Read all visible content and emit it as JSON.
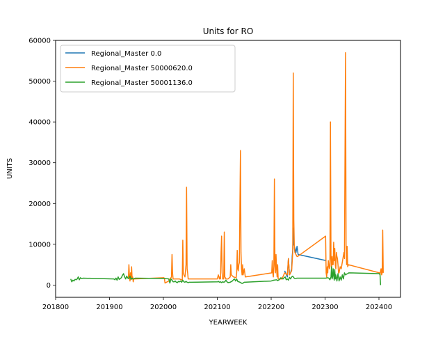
{
  "chart_data": {
    "type": "line",
    "title": "Units for RO",
    "xlabel": "YEARWEEK",
    "ylabel": "UNITS",
    "xlim": [
      201800,
      202440
    ],
    "ylim": [
      -3000,
      60000
    ],
    "xticks": [
      201800,
      201900,
      202000,
      202100,
      202200,
      202300,
      202400
    ],
    "yticks": [
      0,
      10000,
      20000,
      30000,
      40000,
      50000,
      60000
    ],
    "grid": false,
    "legend_position": "upper-left",
    "series": [
      {
        "name": "Regional_Master 0.0",
        "color": "#1f77b4",
        "points": [
          [
            202225,
            3500
          ],
          [
            202230,
            2000
          ],
          [
            202232,
            6500
          ],
          [
            202234,
            2500
          ],
          [
            202236,
            3000
          ],
          [
            202238,
            4000
          ],
          [
            202239,
            7000
          ],
          [
            202240,
            8500
          ],
          [
            202241,
            14000
          ],
          [
            202242,
            10000
          ],
          [
            202244,
            9000
          ],
          [
            202246,
            8000
          ],
          [
            202248,
            9500
          ],
          [
            202250,
            7500
          ],
          [
            202302,
            6000
          ]
        ]
      },
      {
        "name": "Regional_Master 50000620.0",
        "color": "#ff7f0e",
        "points": [
          [
            201935,
            1500
          ],
          [
            201936,
            5000
          ],
          [
            201937,
            2000
          ],
          [
            201938,
            1000
          ],
          [
            201939,
            3000
          ],
          [
            201940,
            1500
          ],
          [
            201941,
            4500
          ],
          [
            201942,
            1500
          ],
          [
            201943,
            2000
          ],
          [
            201944,
            800
          ],
          [
            201945,
            1500
          ],
          [
            202001,
            1800
          ],
          [
            202002,
            1500
          ],
          [
            202003,
            500
          ],
          [
            202010,
            1000
          ],
          [
            202015,
            2000
          ],
          [
            202016,
            7500
          ],
          [
            202017,
            3000
          ],
          [
            202018,
            1500
          ],
          [
            202030,
            1500
          ],
          [
            202035,
            1200
          ],
          [
            202036,
            11000
          ],
          [
            202037,
            3000
          ],
          [
            202038,
            2500
          ],
          [
            202040,
            2000
          ],
          [
            202042,
            5000
          ],
          [
            202043,
            24000
          ],
          [
            202044,
            4000
          ],
          [
            202045,
            3000
          ],
          [
            202046,
            1500
          ],
          [
            202100,
            1500
          ],
          [
            202101,
            2000
          ],
          [
            202102,
            2500
          ],
          [
            202104,
            1500
          ],
          [
            202105,
            2000
          ],
          [
            202106,
            1500
          ],
          [
            202107,
            8000
          ],
          [
            202108,
            12000
          ],
          [
            202109,
            3000
          ],
          [
            202110,
            1500
          ],
          [
            202112,
            1500
          ],
          [
            202113,
            13000
          ],
          [
            202114,
            2000
          ],
          [
            202115,
            1800
          ],
          [
            202116,
            1500
          ],
          [
            202120,
            1500
          ],
          [
            202124,
            2000
          ],
          [
            202125,
            5000
          ],
          [
            202126,
            2500
          ],
          [
            202130,
            2000
          ],
          [
            202135,
            1800
          ],
          [
            202136,
            3000
          ],
          [
            202137,
            8500
          ],
          [
            202138,
            4000
          ],
          [
            202139,
            3500
          ],
          [
            202140,
            5000
          ],
          [
            202141,
            5500
          ],
          [
            202142,
            20000
          ],
          [
            202143,
            33000
          ],
          [
            202144,
            8000
          ],
          [
            202145,
            4000
          ],
          [
            202146,
            2500
          ],
          [
            202147,
            5000
          ],
          [
            202148,
            2500
          ],
          [
            202150,
            4000
          ],
          [
            202151,
            3000
          ],
          [
            202152,
            2000
          ],
          [
            202201,
            3000
          ],
          [
            202202,
            6000
          ],
          [
            202203,
            3000
          ],
          [
            202204,
            2000
          ],
          [
            202205,
            4500
          ],
          [
            202206,
            26000
          ],
          [
            202207,
            5000
          ],
          [
            202208,
            3000
          ],
          [
            202209,
            7500
          ],
          [
            202210,
            4000
          ],
          [
            202211,
            2000
          ],
          [
            202212,
            5000
          ],
          [
            202213,
            1500
          ],
          [
            202220,
            1500
          ],
          [
            202225,
            3000
          ],
          [
            202230,
            2500
          ],
          [
            202232,
            6500
          ],
          [
            202234,
            2500
          ],
          [
            202236,
            3000
          ],
          [
            202238,
            3500
          ],
          [
            202240,
            8000
          ],
          [
            202241,
            52000
          ],
          [
            202242,
            16000
          ],
          [
            202243,
            9000
          ],
          [
            202244,
            8000
          ],
          [
            202246,
            7500
          ],
          [
            202248,
            7000
          ],
          [
            202249,
            7000
          ],
          [
            202301,
            12000
          ],
          [
            202302,
            3000
          ],
          [
            202303,
            2000
          ],
          [
            202304,
            4500
          ],
          [
            202305,
            3000
          ],
          [
            202306,
            6000
          ],
          [
            202307,
            5000
          ],
          [
            202308,
            4000
          ],
          [
            202309,
            4500
          ],
          [
            202310,
            40000
          ],
          [
            202311,
            6500
          ],
          [
            202312,
            4000
          ],
          [
            202313,
            7000
          ],
          [
            202314,
            5000
          ],
          [
            202315,
            5000
          ],
          [
            202316,
            10500
          ],
          [
            202317,
            6000
          ],
          [
            202318,
            9000
          ],
          [
            202319,
            5000
          ],
          [
            202320,
            4000
          ],
          [
            202321,
            8000
          ],
          [
            202322,
            7000
          ],
          [
            202323,
            6500
          ],
          [
            202324,
            5000
          ],
          [
            202325,
            3000
          ],
          [
            202326,
            3000
          ],
          [
            202328,
            4500
          ],
          [
            202330,
            4000
          ],
          [
            202335,
            8000
          ],
          [
            202336,
            6500
          ],
          [
            202338,
            57000
          ],
          [
            202339,
            10000
          ],
          [
            202340,
            5000
          ],
          [
            202341,
            9500
          ],
          [
            202342,
            4500
          ],
          [
            202343,
            5000
          ],
          [
            202401,
            3000
          ],
          [
            202402,
            2500
          ],
          [
            202403,
            3500
          ],
          [
            202404,
            4000
          ],
          [
            202405,
            2500
          ],
          [
            202406,
            3000
          ],
          [
            202407,
            13500
          ],
          [
            202408,
            3000
          ]
        ]
      },
      {
        "name": "Regional_Master 50001136.0",
        "color": "#2ca02c",
        "points": [
          [
            201828,
            1500
          ],
          [
            201830,
            800
          ],
          [
            201832,
            1200
          ],
          [
            201834,
            1000
          ],
          [
            201836,
            1400
          ],
          [
            201838,
            1300
          ],
          [
            201840,
            1500
          ],
          [
            201842,
            2000
          ],
          [
            201844,
            1300
          ],
          [
            201846,
            1800
          ],
          [
            201848,
            1600
          ],
          [
            201851,
            1700
          ],
          [
            201908,
            1500
          ],
          [
            201910,
            1300
          ],
          [
            201912,
            1700
          ],
          [
            201914,
            1200
          ],
          [
            201916,
            2000
          ],
          [
            201918,
            1400
          ],
          [
            201920,
            1600
          ],
          [
            201922,
            1800
          ],
          [
            201924,
            2400
          ],
          [
            201926,
            2800
          ],
          [
            201928,
            2000
          ],
          [
            201930,
            1500
          ],
          [
            201932,
            2200
          ],
          [
            201934,
            1700
          ],
          [
            201936,
            1600
          ],
          [
            201938,
            2200
          ],
          [
            201940,
            1400
          ],
          [
            201942,
            1700
          ],
          [
            201944,
            1500
          ],
          [
            201946,
            1600
          ],
          [
            201948,
            1700
          ],
          [
            202005,
            1600
          ],
          [
            202010,
            1500
          ],
          [
            202012,
            500
          ],
          [
            202014,
            1500
          ],
          [
            202016,
            1200
          ],
          [
            202018,
            800
          ],
          [
            202020,
            800
          ],
          [
            202022,
            1000
          ],
          [
            202024,
            700
          ],
          [
            202026,
            600
          ],
          [
            202028,
            900
          ],
          [
            202030,
            800
          ],
          [
            202032,
            1000
          ],
          [
            202034,
            700
          ],
          [
            202036,
            1200
          ],
          [
            202038,
            800
          ],
          [
            202040,
            700
          ],
          [
            202042,
            900
          ],
          [
            202044,
            700
          ],
          [
            202046,
            600
          ],
          [
            202048,
            700
          ],
          [
            202052,
            700
          ],
          [
            202101,
            800
          ],
          [
            202102,
            900
          ],
          [
            202104,
            700
          ],
          [
            202106,
            800
          ],
          [
            202108,
            600
          ],
          [
            202110,
            800
          ],
          [
            202112,
            700
          ],
          [
            202114,
            800
          ],
          [
            202116,
            1200
          ],
          [
            202118,
            800
          ],
          [
            202120,
            600
          ],
          [
            202124,
            700
          ],
          [
            202128,
            1000
          ],
          [
            202130,
            1300
          ],
          [
            202132,
            1500
          ],
          [
            202134,
            1000
          ],
          [
            202136,
            1500
          ],
          [
            202138,
            900
          ],
          [
            202140,
            800
          ],
          [
            202142,
            700
          ],
          [
            202146,
            400
          ],
          [
            202148,
            500
          ],
          [
            202150,
            700
          ],
          [
            202200,
            1000
          ],
          [
            202205,
            1200
          ],
          [
            202210,
            1300
          ],
          [
            202212,
            1100
          ],
          [
            202215,
            1300
          ],
          [
            202218,
            1800
          ],
          [
            202220,
            1600
          ],
          [
            202222,
            1500
          ],
          [
            202224,
            1800
          ],
          [
            202226,
            2000
          ],
          [
            202228,
            1300
          ],
          [
            202230,
            1500
          ],
          [
            202232,
            1200
          ],
          [
            202234,
            1900
          ],
          [
            202236,
            1500
          ],
          [
            202238,
            2000
          ],
          [
            202240,
            2200
          ],
          [
            202242,
            1800
          ],
          [
            202244,
            1600
          ],
          [
            202248,
            1700
          ],
          [
            202301,
            1700
          ],
          [
            202305,
            1800
          ],
          [
            202307,
            1700
          ],
          [
            202309,
            1300
          ],
          [
            202311,
            2000
          ],
          [
            202312,
            4500
          ],
          [
            202313,
            1500
          ],
          [
            202314,
            2000
          ],
          [
            202315,
            4000
          ],
          [
            202316,
            2500
          ],
          [
            202317,
            1200
          ],
          [
            202318,
            3800
          ],
          [
            202319,
            1500
          ],
          [
            202320,
            2500
          ],
          [
            202322,
            1000
          ],
          [
            202324,
            2800
          ],
          [
            202326,
            1000
          ],
          [
            202328,
            2000
          ],
          [
            202330,
            1200
          ],
          [
            202332,
            2500
          ],
          [
            202334,
            1500
          ],
          [
            202336,
            3000
          ],
          [
            202338,
            2500
          ],
          [
            202340,
            2700
          ],
          [
            202342,
            2800
          ],
          [
            202344,
            3000
          ],
          [
            202400,
            2800
          ],
          [
            202402,
            2600
          ],
          [
            202403,
            0
          ]
        ]
      }
    ]
  }
}
